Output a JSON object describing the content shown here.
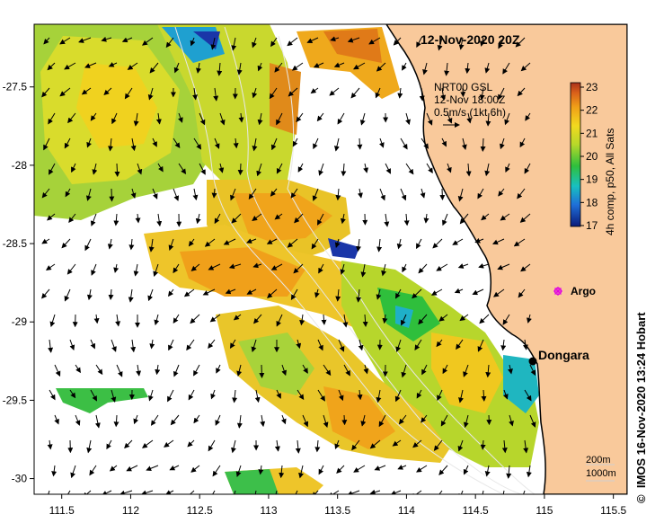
{
  "map": {
    "title": "12-Nov-2020 20Z",
    "current_source": "NRT00 GSL",
    "current_time": "12-Nov 18:00Z",
    "current_scale": "0.5m/s (1kt 6h)",
    "lon_ticks": [
      "111.5",
      "112",
      "112.5",
      "113",
      "113.5",
      "114",
      "114.5",
      "115",
      "115.5"
    ],
    "lat_ticks": [
      "-27.5",
      "-28",
      "-28.5",
      "-29",
      "-29.5",
      "-30"
    ],
    "lon_range": [
      111.3,
      115.6
    ],
    "lat_range": [
      -27.1,
      -30.1
    ],
    "colorbar": {
      "ticks": [
        "23",
        "22",
        "21",
        "20",
        "19",
        "18",
        "17"
      ],
      "label": "4h comp, p50, All Sats",
      "range": [
        17,
        23
      ]
    },
    "places": [
      {
        "name": "Dongara",
        "lon": 114.93,
        "lat": -29.25
      },
      {
        "name": "Argo",
        "lon": 115.1,
        "lat": -28.83
      }
    ],
    "depth_legend": [
      "200m",
      "1000m"
    ],
    "credit": "IMOS 16-Nov-2020 13:24 Hobart",
    "copyright": "©",
    "colors": {
      "land": "#f9c99b",
      "coastline": "#000000",
      "sst_warm": "#d97a16",
      "sst_cool": "#1d2f9a"
    }
  }
}
